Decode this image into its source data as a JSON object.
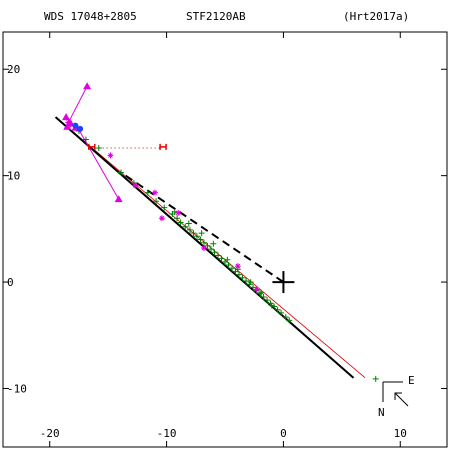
{
  "header": {
    "left": "WDS 17048+2805",
    "center": "STF2120AB",
    "right": "(Hrt2017a)"
  },
  "compass": {
    "east": "E",
    "north": "N"
  },
  "chart_data": {
    "type": "scatter",
    "xlim": [
      -24,
      14
    ],
    "ylim": [
      -15.5,
      23.5
    ],
    "x_ticks": [
      -20,
      -10,
      0,
      10
    ],
    "y_ticks": [
      20,
      10,
      0,
      -10
    ],
    "grid": false,
    "primary_star": [
      0,
      0
    ],
    "orbit_line": {
      "from": [
        -19.5,
        15.5
      ],
      "to": [
        6,
        -9
      ]
    },
    "dashed_line": {
      "from": [
        -13.5,
        10
      ],
      "to": [
        0,
        0
      ]
    },
    "red_line": {
      "from": [
        -19.5,
        15.5
      ],
      "to": [
        7,
        -9
      ]
    },
    "dotted_red_line": {
      "from": [
        -16.5,
        12.6
      ],
      "to": [
        -10.5,
        12.6
      ]
    },
    "green_points": [
      [
        -18.2,
        14.8
      ],
      [
        -17.5,
        14.2
      ],
      [
        -16.9,
        13.4
      ],
      [
        -15.8,
        12.6
      ],
      [
        -13.9,
        10.3
      ],
      [
        -12.8,
        9.3
      ],
      [
        -11.6,
        8.4
      ],
      [
        -10.9,
        7.6
      ],
      [
        -10.2,
        7.0
      ],
      [
        -9.5,
        6.4
      ],
      [
        -9.1,
        6.0
      ],
      [
        -8.8,
        5.6
      ],
      [
        -8.4,
        5.2
      ],
      [
        -8.0,
        4.9
      ],
      [
        -7.7,
        4.6
      ],
      [
        -7.4,
        4.3
      ],
      [
        -7.1,
        4.0
      ],
      [
        -6.8,
        3.7
      ],
      [
        -6.5,
        3.4
      ],
      [
        -6.2,
        3.1
      ],
      [
        -5.9,
        2.8
      ],
      [
        -5.6,
        2.5
      ],
      [
        -5.3,
        2.2
      ],
      [
        -5.0,
        1.9
      ],
      [
        -4.7,
        1.6
      ],
      [
        -4.4,
        1.3
      ],
      [
        -4.1,
        1.0
      ],
      [
        -3.8,
        0.7
      ],
      [
        -3.5,
        0.4
      ],
      [
        -3.2,
        0.1
      ],
      [
        -2.9,
        -0.2
      ],
      [
        -2.6,
        -0.5
      ],
      [
        -2.3,
        -0.8
      ],
      [
        -2.0,
        -1.1
      ],
      [
        -1.7,
        -1.4
      ],
      [
        -1.4,
        -1.7
      ],
      [
        -1.1,
        -2.0
      ],
      [
        -0.8,
        -2.3
      ],
      [
        -0.5,
        -2.6
      ],
      [
        -0.2,
        -2.9
      ],
      [
        0.2,
        -3.3
      ],
      [
        0.5,
        -3.6
      ],
      [
        -6.0,
        3.6
      ],
      [
        -7.0,
        4.6
      ],
      [
        -8.1,
        5.5
      ],
      [
        -9.3,
        6.6
      ],
      [
        -4.8,
        2.1
      ],
      [
        -3.9,
        1.2
      ],
      [
        -2.8,
        0.0
      ],
      [
        -1.9,
        -1.0
      ],
      [
        -1.0,
        -2.2
      ],
      [
        7.9,
        -9.1
      ]
    ],
    "magenta_points": [
      [
        -18.4,
        15.0
      ],
      [
        -14.8,
        11.9
      ],
      [
        -12.7,
        9.1
      ],
      [
        -11.0,
        8.4
      ],
      [
        -9.0,
        6.5
      ],
      [
        -6.8,
        3.2
      ],
      [
        -3.9,
        1.5
      ],
      [
        -2.3,
        -0.7
      ],
      [
        -10.4,
        6.0
      ]
    ],
    "magenta_triangles": [
      [
        -16.8,
        18.4
      ],
      [
        -14.1,
        7.8
      ],
      [
        -18.6,
        15.5
      ],
      [
        -18.2,
        14.9
      ],
      [
        -17.8,
        14.5
      ],
      [
        -18.5,
        14.6
      ]
    ],
    "magenta_connectors": [
      {
        "from": [
          -18.4,
          15.0
        ],
        "to": [
          -16.8,
          18.4
        ]
      },
      {
        "from": [
          -17.5,
          14.3
        ],
        "to": [
          -14.1,
          7.8
        ]
      }
    ],
    "blue_points": [
      [
        -17.8,
        14.7
      ],
      [
        -17.4,
        14.4
      ]
    ],
    "red_error_markers": [
      [
        -16.4,
        12.7
      ],
      [
        -10.3,
        12.7
      ]
    ]
  }
}
